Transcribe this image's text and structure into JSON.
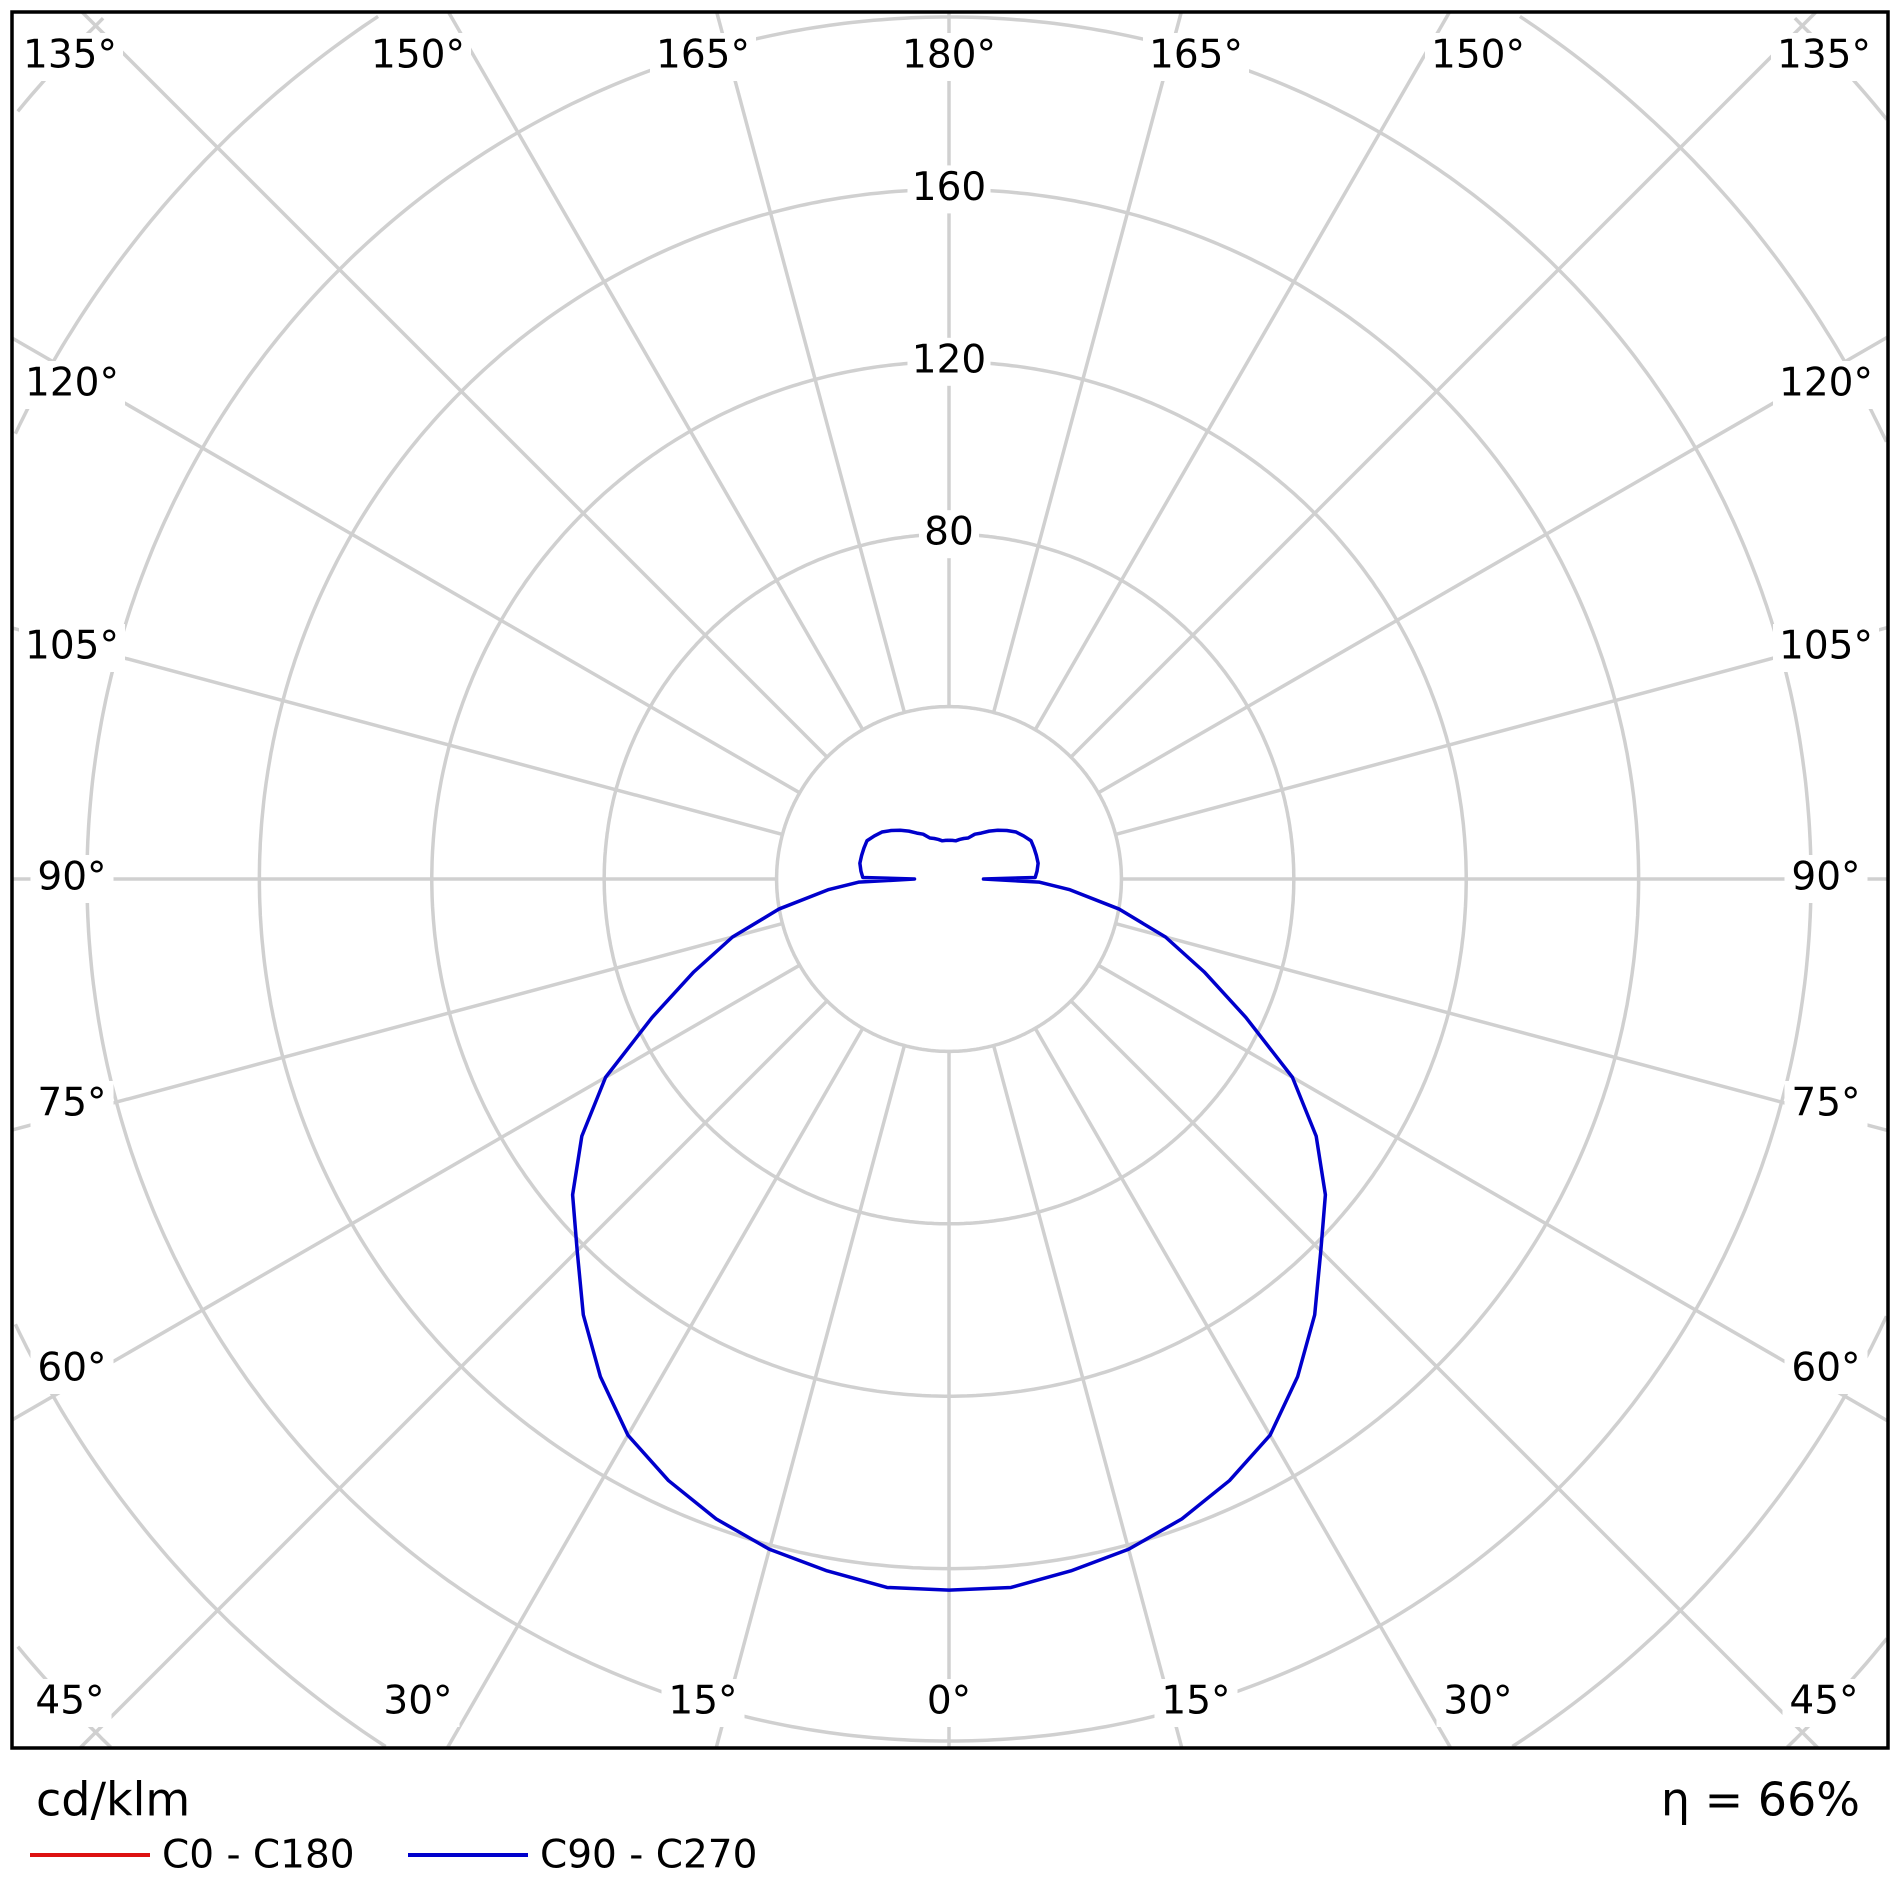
{
  "chart_data": {
    "type": "polar-line",
    "unit_label": "cd/klm",
    "efficiency_label": "η = 66%",
    "radial_ticks": [
      40,
      80,
      120,
      160,
      200,
      240,
      280
    ],
    "radial_tick_labels": [
      "80",
      "120",
      "160"
    ],
    "angle_labels_top": [
      "135°",
      "150°",
      "165°",
      "180°",
      "165°",
      "150°",
      "135°"
    ],
    "angle_labels_left": [
      "120°",
      "105°",
      "90°",
      "75°",
      "60°"
    ],
    "angle_labels_right": [
      "120°",
      "105°",
      "90°",
      "75°",
      "60°"
    ],
    "angle_labels_bottom": [
      "45°",
      "30°",
      "15°",
      "0°",
      "15°",
      "30°",
      "45°"
    ],
    "grid": true,
    "legend_placement": "bottom-left",
    "series": [
      {
        "name": "C0 - C180",
        "color": "#dd1111",
        "gamma": [],
        "values": []
      },
      {
        "name": "C90 - C270",
        "color": "#0000cc",
        "gamma": [
          0,
          5,
          10,
          15,
          20,
          25,
          30,
          35,
          40,
          45,
          50,
          55,
          60,
          65,
          70,
          75,
          80,
          85,
          88,
          90,
          91,
          95,
          100,
          105,
          110,
          115,
          120,
          125,
          130,
          135,
          140,
          145,
          150,
          155,
          160,
          165,
          170,
          175,
          180
        ],
        "values": [
          165,
          165,
          163,
          161,
          158,
          154,
          149,
          141,
          132,
          122,
          114,
          104,
          92,
          76,
          63,
          52,
          40,
          28,
          21,
          8,
          20,
          20.5,
          21,
          21,
          21,
          21,
          20,
          19,
          17.5,
          16,
          14.5,
          13,
          12,
          10.5,
          10,
          9.5,
          9,
          9,
          9
        ]
      }
    ]
  }
}
